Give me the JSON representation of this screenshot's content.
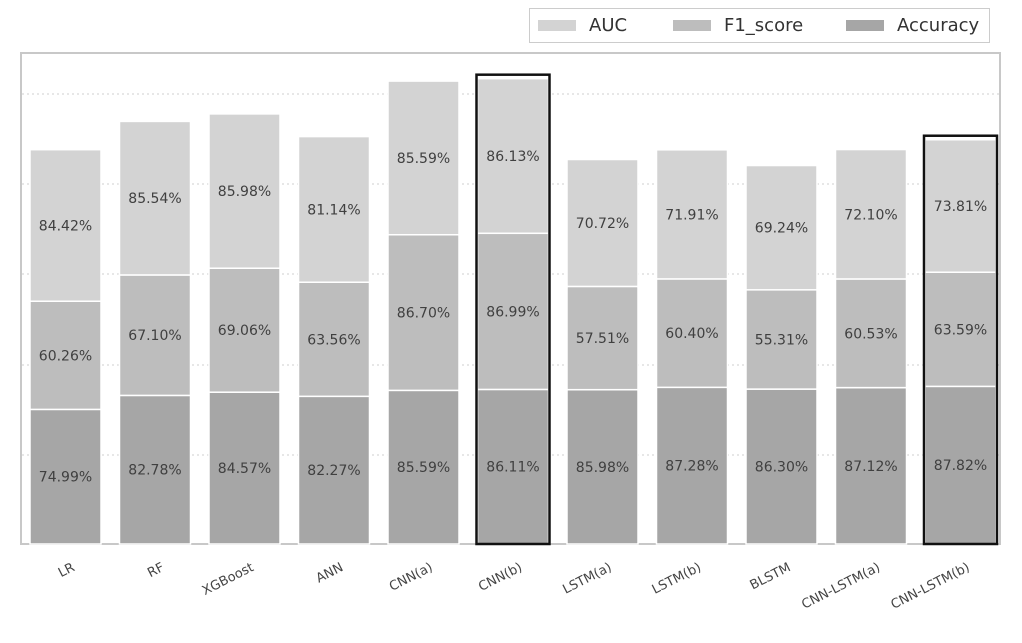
{
  "legend": {
    "items": [
      {
        "label": "AUC",
        "color": "#d3d3d3"
      },
      {
        "label": "F1_score",
        "color": "#bdbdbd"
      },
      {
        "label": "Accuracy",
        "color": "#a6a6a6"
      }
    ]
  },
  "chart_data": {
    "type": "bar",
    "stacked": true,
    "grid": true,
    "legend_position": "top-right",
    "categories": [
      "LR",
      "RF",
      "XGBoost",
      "ANN",
      "CNN(a)",
      "CNN(b)",
      "LSTM(a)",
      "LSTM(b)",
      "BLSTM",
      "CNN-LSTM(a)",
      "CNN-LSTM(b)"
    ],
    "highlighted": [
      "CNN(b)",
      "CNN-LSTM(b)"
    ],
    "series": [
      {
        "name": "Accuracy",
        "color": "#a6a6a6",
        "values": [
          74.99,
          82.78,
          84.57,
          82.27,
          85.59,
          86.11,
          85.98,
          87.28,
          86.3,
          87.12,
          87.82
        ],
        "labels": [
          "74.99%",
          "82.78%",
          "84.57%",
          "82.27%",
          "85.59%",
          "86.11%",
          "85.98%",
          "87.28%",
          "86.30%",
          "87.12%",
          "87.82%"
        ]
      },
      {
        "name": "F1_score",
        "color": "#bdbdbd",
        "values": [
          60.26,
          67.1,
          69.06,
          63.56,
          86.7,
          86.99,
          57.51,
          60.4,
          55.31,
          60.53,
          63.59
        ],
        "labels": [
          "60.26%",
          "67.10%",
          "69.06%",
          "63.56%",
          "86.70%",
          "86.99%",
          "57.51%",
          "60.40%",
          "55.31%",
          "60.53%",
          "63.59%"
        ]
      },
      {
        "name": "AUC",
        "color": "#d3d3d3",
        "values": [
          84.42,
          85.54,
          85.98,
          81.14,
          85.59,
          86.13,
          70.72,
          71.91,
          69.24,
          72.1,
          73.81
        ],
        "labels": [
          "84.42%",
          "85.54%",
          "85.98%",
          "81.14%",
          "85.59%",
          "86.13%",
          "70.72%",
          "71.91%",
          "69.24%",
          "72.10%",
          "73.81%"
        ]
      }
    ]
  }
}
